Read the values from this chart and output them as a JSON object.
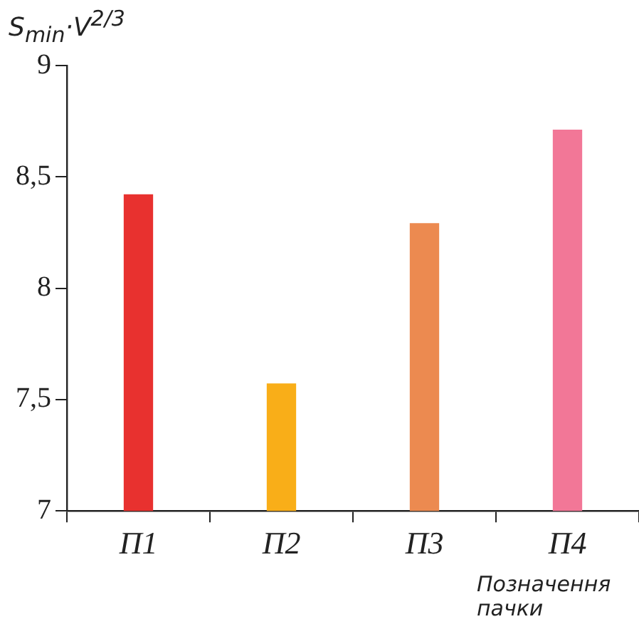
{
  "chart_data": {
    "type": "bar",
    "ylabel": "S$_{min}$·V$^{2/3}$",
    "xlabel": "Позначення пачки",
    "categories": [
      "П1",
      "П2",
      "П3",
      "П4"
    ],
    "values": [
      8.42,
      7.57,
      8.29,
      8.71
    ],
    "colors": [
      "#e8312f",
      "#f9ae18",
      "#ec8a50",
      "#f27797"
    ],
    "ylim": [
      7,
      9
    ],
    "yticks": [
      7,
      {
        "value": 7.5,
        "label": "7,5"
      },
      8,
      {
        "value": 8.5,
        "label": "8,5"
      },
      9
    ],
    "grid": false,
    "legend": false
  }
}
